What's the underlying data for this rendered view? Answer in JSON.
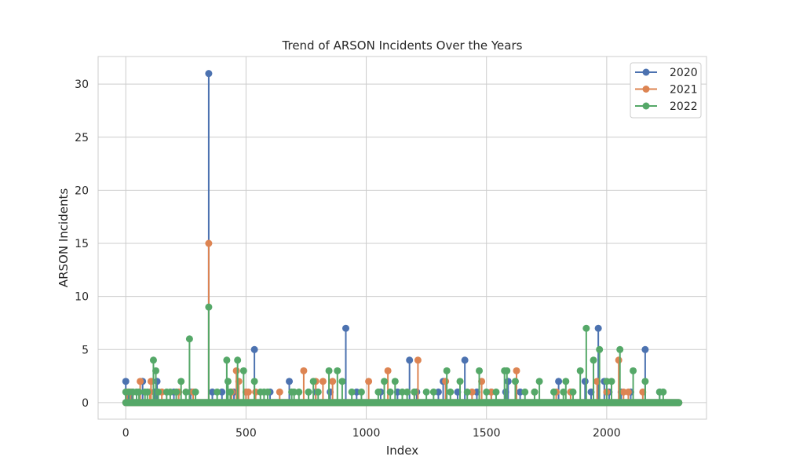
{
  "chart_data": {
    "type": "stem",
    "title": "Trend of ARSON Incidents Over the Years",
    "xlabel": "Index",
    "ylabel": "ARSON Incidents",
    "xlim": [
      -115,
      2415
    ],
    "ylim": [
      -1.56,
      32.6
    ],
    "xticks": [
      0,
      500,
      1000,
      1500,
      2000
    ],
    "yticks": [
      0,
      5,
      10,
      15,
      20,
      25,
      30
    ],
    "grid": true,
    "legend_position": "top-right",
    "baseline_range": [
      0,
      2300
    ],
    "series": [
      {
        "name": "2020",
        "color": "#4c72b0",
        "points": [
          [
            0,
            2
          ],
          [
            10,
            1
          ],
          [
            25,
            1
          ],
          [
            70,
            2
          ],
          [
            120,
            1
          ],
          [
            130,
            2
          ],
          [
            200,
            1
          ],
          [
            270,
            1
          ],
          [
            345,
            31
          ],
          [
            360,
            1
          ],
          [
            400,
            1
          ],
          [
            450,
            1
          ],
          [
            500,
            1
          ],
          [
            535,
            5
          ],
          [
            600,
            1
          ],
          [
            680,
            2
          ],
          [
            760,
            1
          ],
          [
            790,
            1
          ],
          [
            850,
            1
          ],
          [
            915,
            7
          ],
          [
            960,
            1
          ],
          [
            1060,
            1
          ],
          [
            1130,
            1
          ],
          [
            1180,
            4
          ],
          [
            1210,
            1
          ],
          [
            1300,
            1
          ],
          [
            1320,
            2
          ],
          [
            1380,
            1
          ],
          [
            1410,
            4
          ],
          [
            1460,
            1
          ],
          [
            1520,
            1
          ],
          [
            1580,
            1
          ],
          [
            1590,
            2
          ],
          [
            1640,
            1
          ],
          [
            1700,
            1
          ],
          [
            1800,
            2
          ],
          [
            1850,
            1
          ],
          [
            1910,
            2
          ],
          [
            1935,
            1
          ],
          [
            1965,
            7
          ],
          [
            1990,
            2
          ],
          [
            2010,
            1
          ],
          [
            2060,
            1
          ],
          [
            2100,
            1
          ],
          [
            2160,
            5
          ],
          [
            2220,
            1
          ]
        ]
      },
      {
        "name": "2021",
        "color": "#dd8452",
        "points": [
          [
            5,
            1
          ],
          [
            20,
            1
          ],
          [
            60,
            2
          ],
          [
            100,
            1
          ],
          [
            105,
            2
          ],
          [
            150,
            1
          ],
          [
            220,
            1
          ],
          [
            280,
            1
          ],
          [
            345,
            15
          ],
          [
            440,
            1
          ],
          [
            460,
            3
          ],
          [
            470,
            2
          ],
          [
            500,
            1
          ],
          [
            510,
            1
          ],
          [
            540,
            1
          ],
          [
            640,
            1
          ],
          [
            740,
            3
          ],
          [
            790,
            2
          ],
          [
            820,
            2
          ],
          [
            860,
            2
          ],
          [
            1010,
            2
          ],
          [
            1090,
            3
          ],
          [
            1200,
            1
          ],
          [
            1215,
            4
          ],
          [
            1330,
            2
          ],
          [
            1440,
            1
          ],
          [
            1480,
            2
          ],
          [
            1520,
            1
          ],
          [
            1625,
            3
          ],
          [
            1700,
            1
          ],
          [
            1790,
            1
          ],
          [
            1850,
            1
          ],
          [
            1960,
            2
          ],
          [
            2000,
            1
          ],
          [
            2050,
            4
          ],
          [
            2070,
            1
          ],
          [
            2090,
            1
          ],
          [
            2150,
            1
          ]
        ]
      },
      {
        "name": "2022",
        "color": "#55a868",
        "points": [
          [
            0,
            1
          ],
          [
            15,
            1
          ],
          [
            30,
            1
          ],
          [
            45,
            1
          ],
          [
            55,
            1
          ],
          [
            80,
            1
          ],
          [
            90,
            1
          ],
          [
            115,
            4
          ],
          [
            125,
            3
          ],
          [
            135,
            1
          ],
          [
            170,
            1
          ],
          [
            185,
            1
          ],
          [
            210,
            1
          ],
          [
            230,
            2
          ],
          [
            250,
            1
          ],
          [
            265,
            6
          ],
          [
            290,
            1
          ],
          [
            345,
            9
          ],
          [
            380,
            1
          ],
          [
            420,
            4
          ],
          [
            425,
            2
          ],
          [
            435,
            1
          ],
          [
            465,
            4
          ],
          [
            490,
            3
          ],
          [
            535,
            2
          ],
          [
            560,
            1
          ],
          [
            575,
            1
          ],
          [
            590,
            1
          ],
          [
            690,
            1
          ],
          [
            700,
            1
          ],
          [
            720,
            1
          ],
          [
            760,
            1
          ],
          [
            780,
            2
          ],
          [
            800,
            1
          ],
          [
            845,
            3
          ],
          [
            880,
            3
          ],
          [
            900,
            2
          ],
          [
            940,
            1
          ],
          [
            980,
            1
          ],
          [
            1050,
            1
          ],
          [
            1075,
            2
          ],
          [
            1100,
            1
          ],
          [
            1120,
            2
          ],
          [
            1150,
            1
          ],
          [
            1170,
            1
          ],
          [
            1200,
            1
          ],
          [
            1250,
            1
          ],
          [
            1280,
            1
          ],
          [
            1335,
            3
          ],
          [
            1350,
            1
          ],
          [
            1390,
            2
          ],
          [
            1420,
            1
          ],
          [
            1470,
            3
          ],
          [
            1500,
            1
          ],
          [
            1540,
            1
          ],
          [
            1575,
            3
          ],
          [
            1585,
            3
          ],
          [
            1620,
            2
          ],
          [
            1660,
            1
          ],
          [
            1700,
            1
          ],
          [
            1720,
            2
          ],
          [
            1780,
            1
          ],
          [
            1820,
            1
          ],
          [
            1830,
            2
          ],
          [
            1860,
            1
          ],
          [
            1890,
            3
          ],
          [
            1915,
            7
          ],
          [
            1945,
            4
          ],
          [
            1970,
            5
          ],
          [
            2000,
            2
          ],
          [
            2020,
            2
          ],
          [
            2055,
            5
          ],
          [
            2110,
            3
          ],
          [
            2160,
            2
          ],
          [
            2220,
            1
          ],
          [
            2235,
            1
          ]
        ]
      }
    ]
  }
}
